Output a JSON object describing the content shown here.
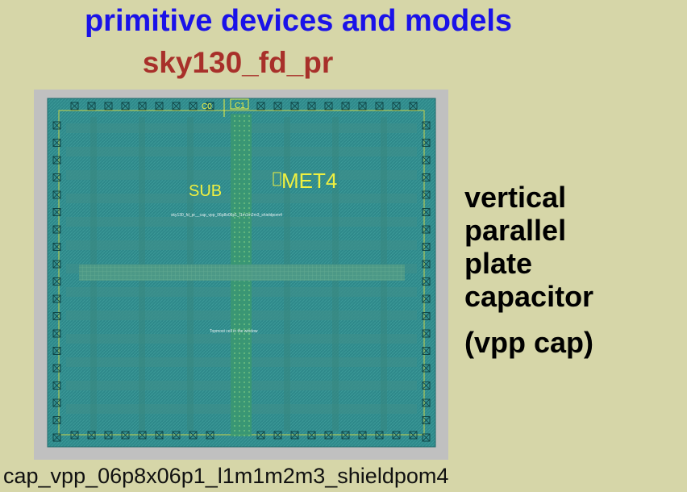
{
  "title": "primitive devices and models",
  "subtitle": "sky130_fd_pr",
  "side_text": {
    "line1": "vertical",
    "line2": "parallel",
    "line3": "plate",
    "line4": "capacitor",
    "line5": "(vpp cap)"
  },
  "caption": "cap_vpp_06p8x06p1_l1m1m2m3_shieldpom4",
  "layout": {
    "pin_c0": "C0",
    "pin_c1": "C1",
    "label_sub": "SUB",
    "label_met4": "MET4",
    "cell_name": "sky130_fd_pr__cap_vpp_06p8x06p1_l1m1m2m3_shieldpom4",
    "window_note": "Topmost cell in the window"
  },
  "colors": {
    "background": "#d6d6a8",
    "title": "#1a12e8",
    "subtitle": "#a8302a",
    "layout_fill": "#2f8a8c",
    "layout_label": "#f0f040"
  }
}
